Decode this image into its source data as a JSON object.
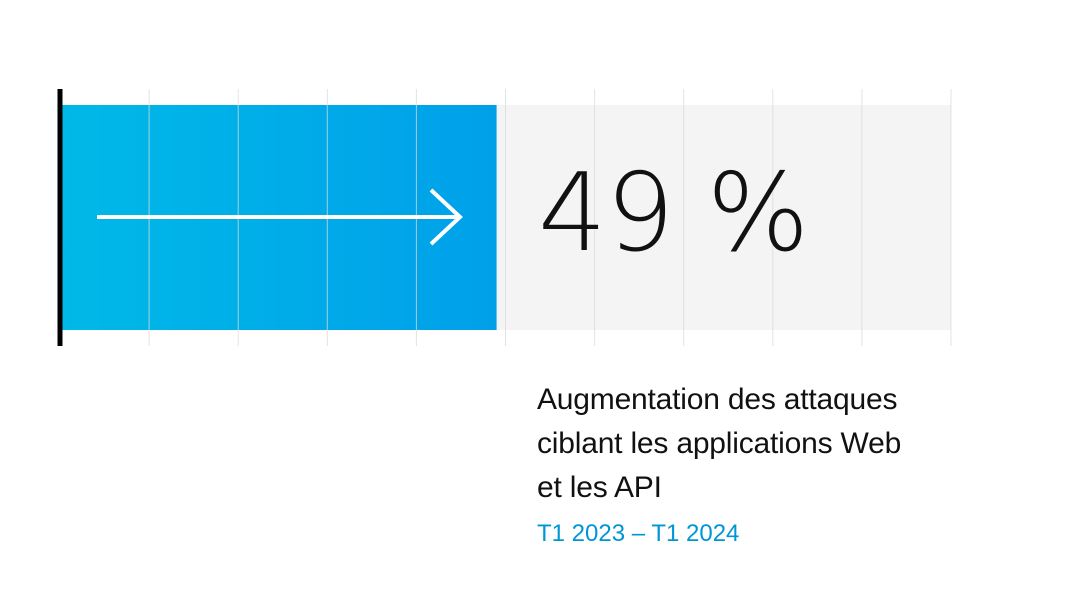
{
  "chart_data": {
    "type": "bar",
    "orientation": "horizontal",
    "value": 49,
    "max": 100,
    "value_label": "49 %",
    "grid": true,
    "title_lines": [
      "Augmentation des attaques",
      "ciblant les applications Web",
      "et les API"
    ],
    "period": "T1 2023 – T1 2024"
  },
  "icons": {
    "bar_arrow": "arrow-right-icon"
  },
  "colors": {
    "bar_start": "#00b9e8",
    "bar_end": "#00a0e9",
    "track": "#f4f4f4",
    "gridline": "#d9d9d9",
    "axis": "#000000",
    "text": "#111111",
    "period": "#0096d6",
    "arrow": "#ffffff"
  }
}
